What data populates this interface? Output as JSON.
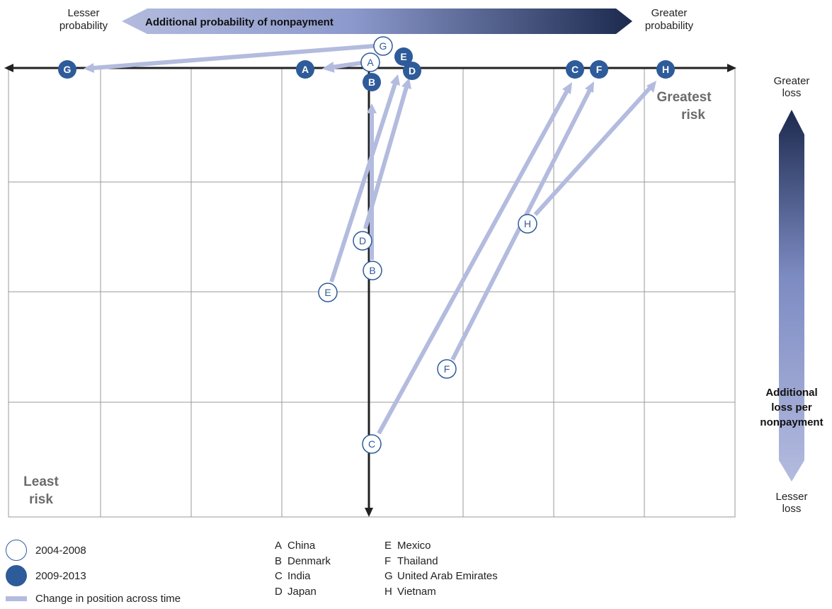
{
  "header": {
    "top_arrow_label": "Additional probability of nonpayment",
    "left_label_line1": "Lesser",
    "left_label_line2": "probability",
    "right_label_line1": "Greater",
    "right_label_line2": "probability"
  },
  "side": {
    "top_line1": "Greater",
    "top_line2": "loss",
    "mid_line1": "Additional",
    "mid_line2": "loss per",
    "mid_line3": "nonpayment",
    "bottom_line1": "Lesser",
    "bottom_line2": "loss"
  },
  "quadrants": {
    "greatest_line1": "Greatest",
    "greatest_line2": "risk",
    "least_line1": "Least",
    "least_line2": "risk"
  },
  "legend": {
    "period1": "2004-2008",
    "period2": "2009-2013",
    "change": "Change in position across time"
  },
  "key": {
    "col1": [
      {
        "letter": "A",
        "country": "China"
      },
      {
        "letter": "B",
        "country": "Denmark"
      },
      {
        "letter": "C",
        "country": "India"
      },
      {
        "letter": "D",
        "country": "Japan"
      }
    ],
    "col2": [
      {
        "letter": "E",
        "country": "Mexico"
      },
      {
        "letter": "F",
        "country": "Thailand"
      },
      {
        "letter": "G",
        "country": "United Arab Emirates"
      },
      {
        "letter": "H",
        "country": "Vietnam"
      }
    ]
  },
  "markers": [
    {
      "letter": "A",
      "country": "China",
      "period": "2004-2008"
    },
    {
      "letter": "A",
      "country": "China",
      "period": "2009-2013"
    },
    {
      "letter": "B",
      "country": "Denmark",
      "period": "2004-2008"
    },
    {
      "letter": "B",
      "country": "Denmark",
      "period": "2009-2013"
    },
    {
      "letter": "C",
      "country": "India",
      "period": "2004-2008"
    },
    {
      "letter": "C",
      "country": "India",
      "period": "2009-2013"
    },
    {
      "letter": "D",
      "country": "Japan",
      "period": "2004-2008"
    },
    {
      "letter": "D",
      "country": "Japan",
      "period": "2009-2013"
    },
    {
      "letter": "E",
      "country": "Mexico",
      "period": "2004-2008"
    },
    {
      "letter": "E",
      "country": "Mexico",
      "period": "2009-2013"
    },
    {
      "letter": "F",
      "country": "Thailand",
      "period": "2004-2008"
    },
    {
      "letter": "F",
      "country": "Thailand",
      "period": "2009-2013"
    },
    {
      "letter": "G",
      "country": "United Arab Emirates",
      "period": "2004-2008"
    },
    {
      "letter": "G",
      "country": "United Arab Emirates",
      "period": "2009-2013"
    },
    {
      "letter": "H",
      "country": "Vietnam",
      "period": "2004-2008"
    },
    {
      "letter": "H",
      "country": "Vietnam",
      "period": "2009-2013"
    }
  ],
  "colors": {
    "dark_navy": "#1c2a4f",
    "marker_blue": "#2e5b9a",
    "change_line": "#b3bbde",
    "grid": "#9a9a9a",
    "quadrant_label": "#6b6b6b"
  }
}
